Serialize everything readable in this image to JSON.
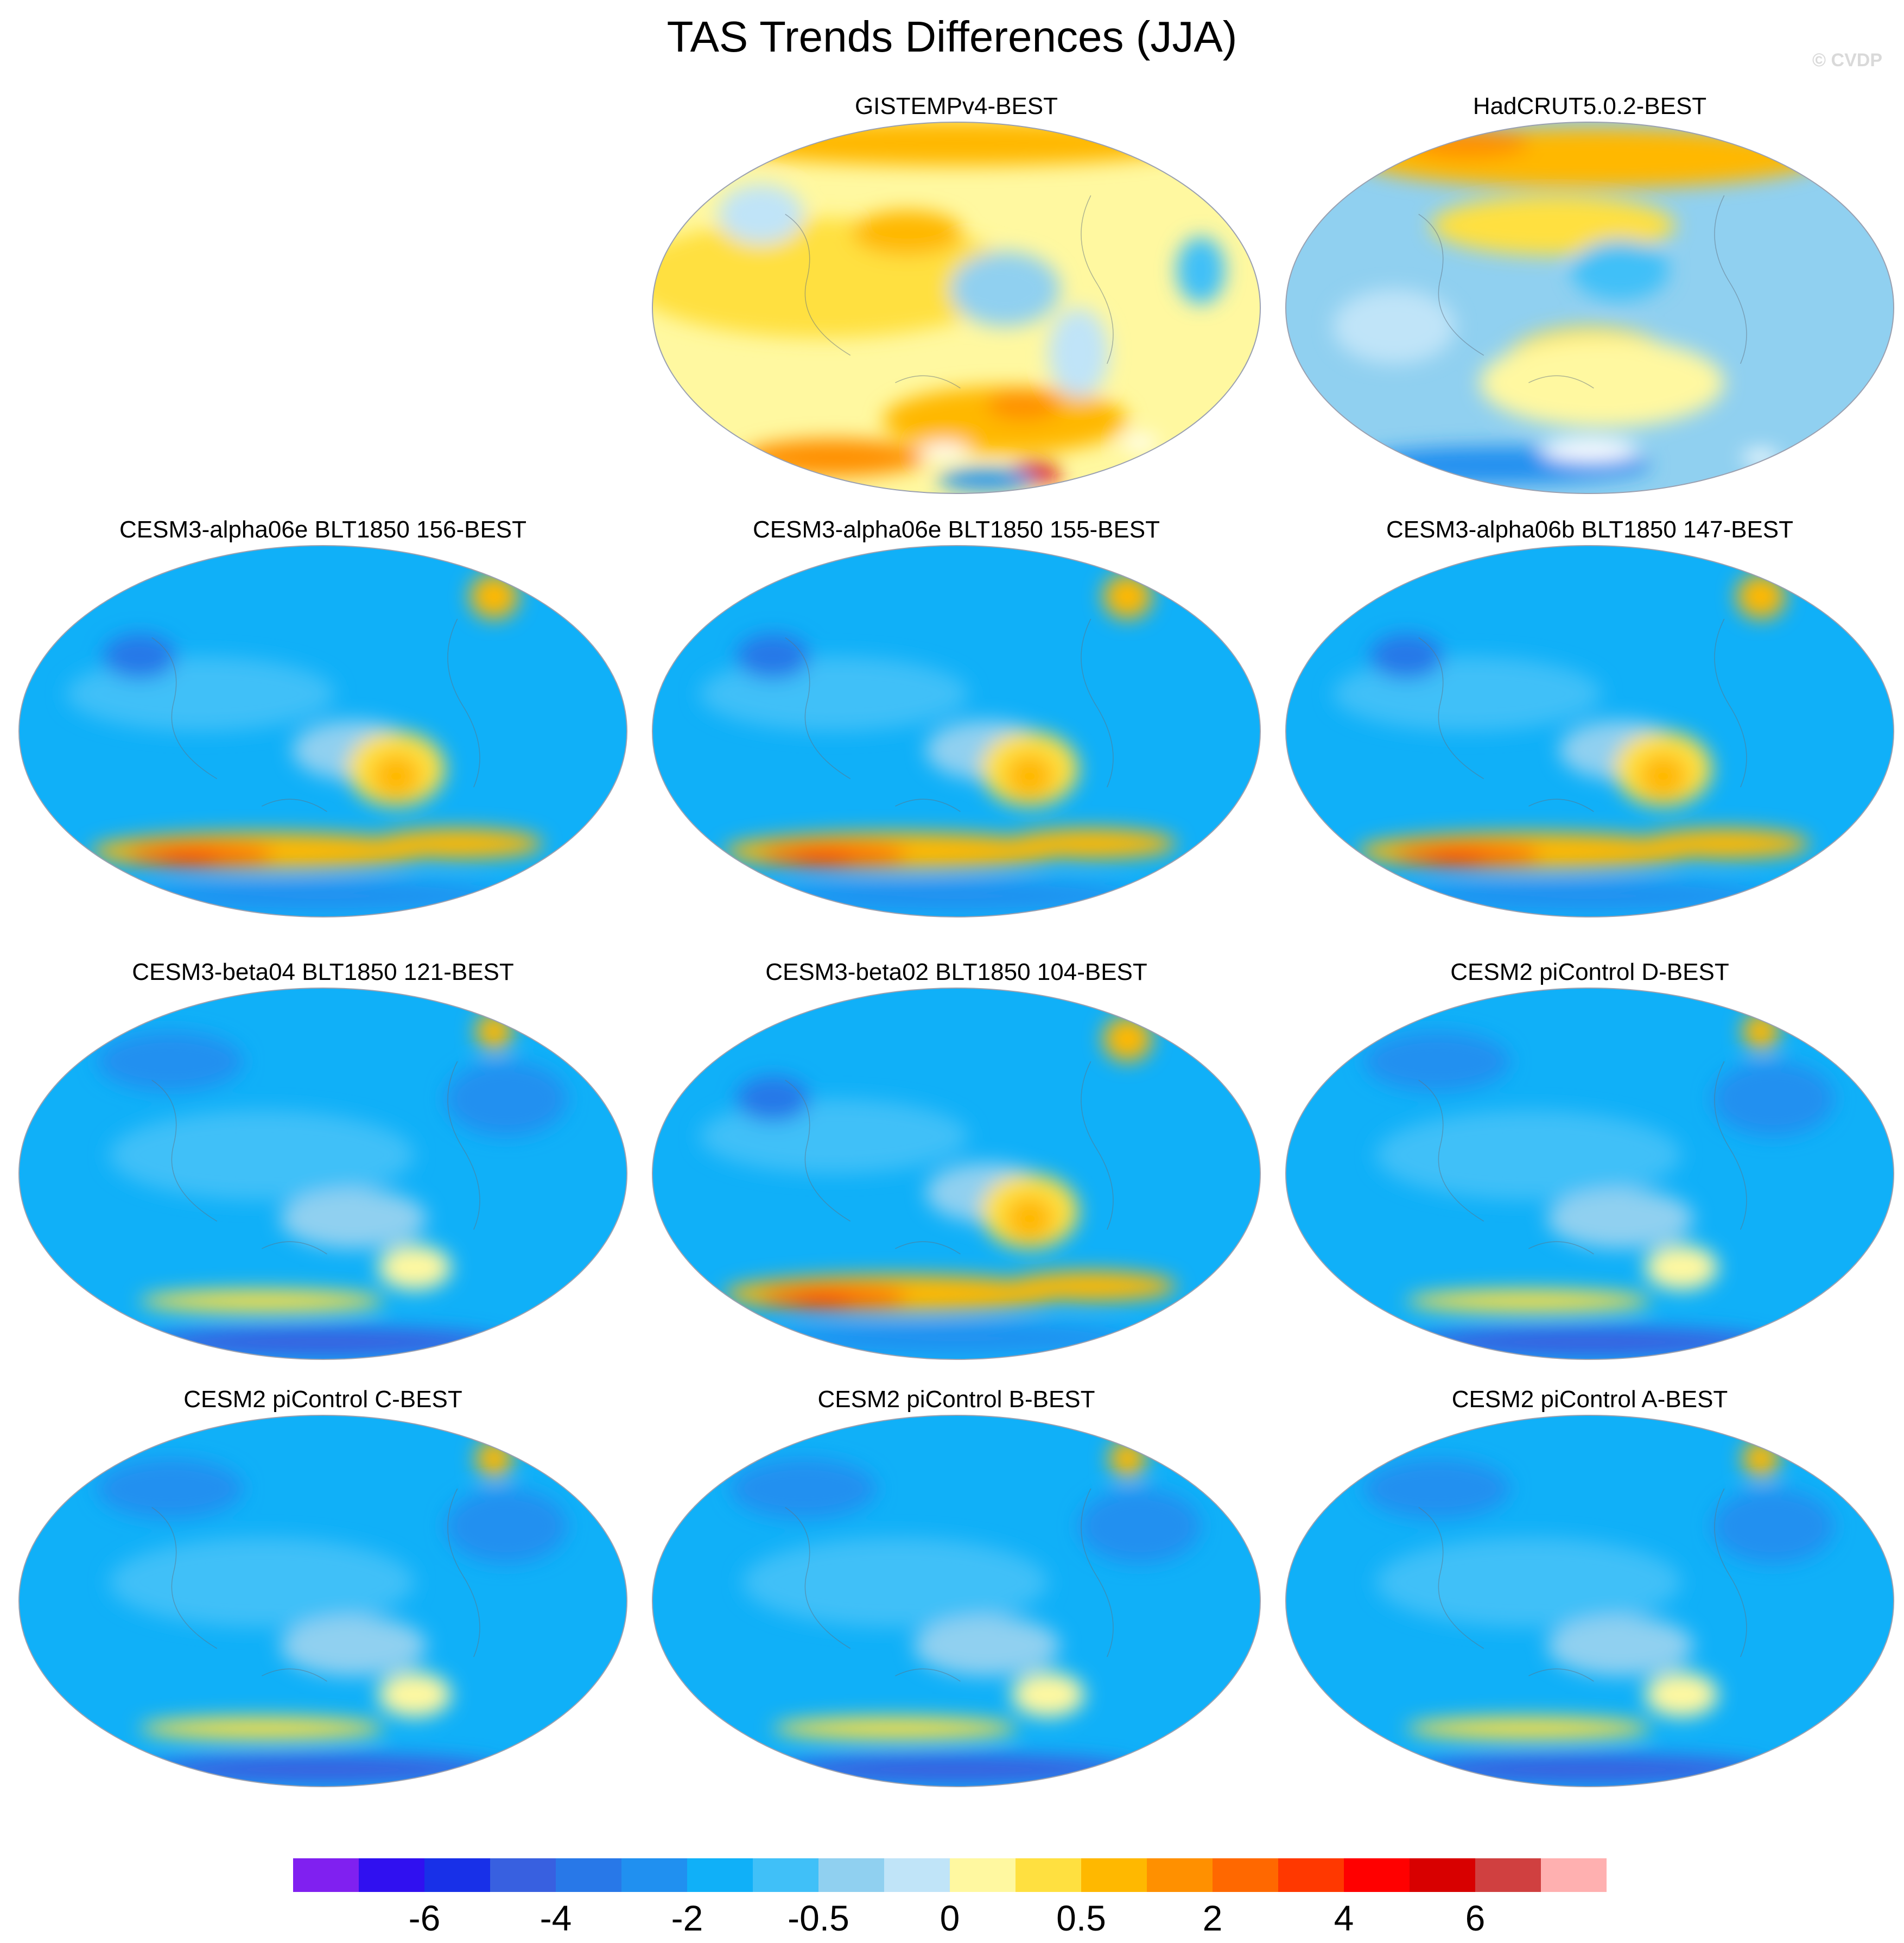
{
  "title": "TAS Trends Differences (JJA)",
  "watermark": "© CVDP",
  "panels": [
    {
      "label": "GISTEMPv4-BEST",
      "pattern": "warm"
    },
    {
      "label": "HadCRUT5.0.2-BEST",
      "pattern": "mixed"
    },
    {
      "label": "CESM3-alpha06e BLT1850 156-BEST",
      "pattern": "cool-warmband"
    },
    {
      "label": "CESM3-alpha06e BLT1850 155-BEST",
      "pattern": "cool-warmband"
    },
    {
      "label": "CESM3-alpha06b BLT1850 147-BEST",
      "pattern": "cool-warmband"
    },
    {
      "label": "CESM3-beta04 BLT1850 121-BEST",
      "pattern": "cool"
    },
    {
      "label": "CESM3-beta02 BLT1850 104-BEST",
      "pattern": "cool-warmband"
    },
    {
      "label": "CESM2 piControl D-BEST",
      "pattern": "cool"
    },
    {
      "label": "CESM2 piControl C-BEST",
      "pattern": "cool"
    },
    {
      "label": "CESM2 piControl B-BEST",
      "pattern": "cool"
    },
    {
      "label": "CESM2 piControl A-BEST",
      "pattern": "cool"
    }
  ],
  "colorbar": {
    "colors": [
      "#8020f0",
      "#3010f0",
      "#1830e8",
      "#3860e0",
      "#2878e8",
      "#2090f0",
      "#10b0f8",
      "#40c0f8",
      "#90d0f0",
      "#c0e4f8",
      "#fff8a0",
      "#ffe040",
      "#ffb800",
      "#ff9000",
      "#ff6800",
      "#ff3800",
      "#ff0000",
      "#d80000",
      "#d04040",
      "#ffb0b0"
    ],
    "labels": [
      {
        "text": "-6",
        "boundary": 2
      },
      {
        "text": "-4",
        "boundary": 4
      },
      {
        "text": "-2",
        "boundary": 6
      },
      {
        "text": "-0.5",
        "boundary": 8
      },
      {
        "text": "0",
        "boundary": 10
      },
      {
        "text": "0.5",
        "boundary": 12
      },
      {
        "text": "2",
        "boundary": 14
      },
      {
        "text": "4",
        "boundary": 16
      },
      {
        "text": "6",
        "boundary": 18
      }
    ]
  }
}
